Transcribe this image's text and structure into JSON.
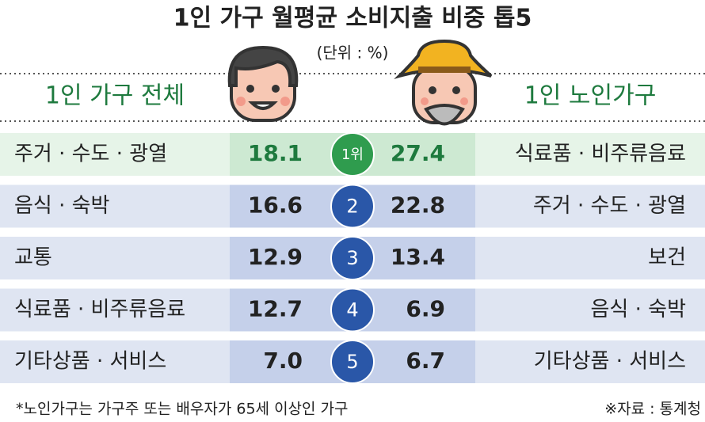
{
  "title": "1인 가구 월평균 소비지출 비중 톱5",
  "unit": "(단위 : %)",
  "headers": {
    "left": "1인 가구 전체",
    "right": "1인 노인가구"
  },
  "table": {
    "rows": [
      {
        "rank": "1위",
        "left_item": "주거 · 수도 · 광열",
        "left_value": "18.1",
        "right_value": "27.4",
        "right_item": "식료품 · 비주류음료"
      },
      {
        "rank": "2",
        "left_item": "음식 · 숙박",
        "left_value": "16.6",
        "right_value": "22.8",
        "right_item": "주거 · 수도 · 광열"
      },
      {
        "rank": "3",
        "left_item": "교통",
        "left_value": "12.9",
        "right_value": "13.4",
        "right_item": "보건"
      },
      {
        "rank": "4",
        "left_item": "식료품 · 비주류음료",
        "left_value": "12.7",
        "right_value": "6.9",
        "right_item": "음식 · 숙박"
      },
      {
        "rank": "5",
        "left_item": "기타상품 · 서비스",
        "left_value": "7.0",
        "right_value": "6.7",
        "right_item": "기타상품 · 서비스"
      }
    ]
  },
  "footnote": "*노인가구는 가구주 또는 배우자가 65세 이상인 가구",
  "source": "※자료 : 통계청"
}
